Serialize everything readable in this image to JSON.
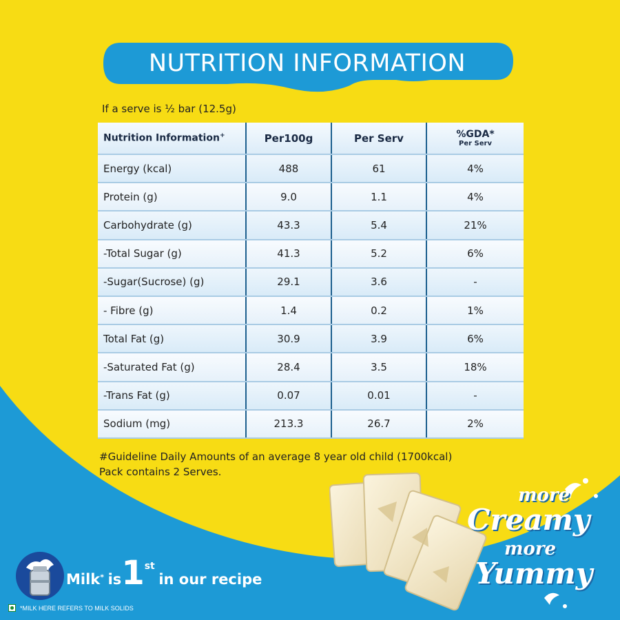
{
  "header": {
    "title": "NUTRITION INFORMATION"
  },
  "serve_note": "If a serve is ½ bar (12.5g)",
  "table": {
    "headers": {
      "nutrient": "Nutrition Information",
      "nutrient_mark": "+",
      "per100g": "Per100g",
      "per_serv": "Per Serv",
      "gda": "%GDA*",
      "gda_sub": "Per Serv"
    },
    "rows": [
      {
        "nutrient": "Energy (kcal)",
        "per100g": "488",
        "per_serv": "61",
        "gda": "4%"
      },
      {
        "nutrient": "Protein (g)",
        "per100g": "9.0",
        "per_serv": "1.1",
        "gda": "4%"
      },
      {
        "nutrient": "Carbohydrate (g)",
        "per100g": "43.3",
        "per_serv": "5.4",
        "gda": "21%"
      },
      {
        "nutrient": "-Total Sugar (g)",
        "per100g": "41.3",
        "per_serv": "5.2",
        "gda": "6%"
      },
      {
        "nutrient": "-Sugar(Sucrose) (g)",
        "per100g": "29.1",
        "per_serv": "3.6",
        "gda": "-"
      },
      {
        "nutrient": "- Fibre (g)",
        "per100g": "1.4",
        "per_serv": "0.2",
        "gda": "1%"
      },
      {
        "nutrient": "Total Fat (g)",
        "per100g": "30.9",
        "per_serv": "3.9",
        "gda": "6%"
      },
      {
        "nutrient": "-Saturated Fat (g)",
        "per100g": "28.4",
        "per_serv": "3.5",
        "gda": "18%"
      },
      {
        "nutrient": "-Trans Fat (g)",
        "per100g": "0.07",
        "per_serv": "0.01",
        "gda": "-"
      },
      {
        "nutrient": "Sodium (mg)",
        "per100g": "213.3",
        "per_serv": "26.7",
        "gda": "2%"
      }
    ]
  },
  "footnotes": {
    "gda_note": "#Guideline Daily Amounts of an average 8 year old child (1700kcal)",
    "pack_note": "Pack contains 2 Serves."
  },
  "tagline": {
    "line1": "more",
    "line2": "Creamy",
    "line3": "more",
    "line4": "Yummy"
  },
  "milk_badge": {
    "word": "Milk",
    "star": "*",
    "is": "is",
    "number": "1",
    "suffix": "st",
    "rest": "in our recipe"
  },
  "legal": "*MILK HERE REFERS TO MILK SOLIDS",
  "colors": {
    "brand_blue": "#1d9ad6",
    "brand_yellow": "#f7dc14",
    "table_border": "#1c5f8e",
    "row_line": "#a9cbe4"
  },
  "icons": [
    "milk-can-icon",
    "veg-mark-icon",
    "chocolate-bar-image",
    "milk-splash-icon"
  ]
}
